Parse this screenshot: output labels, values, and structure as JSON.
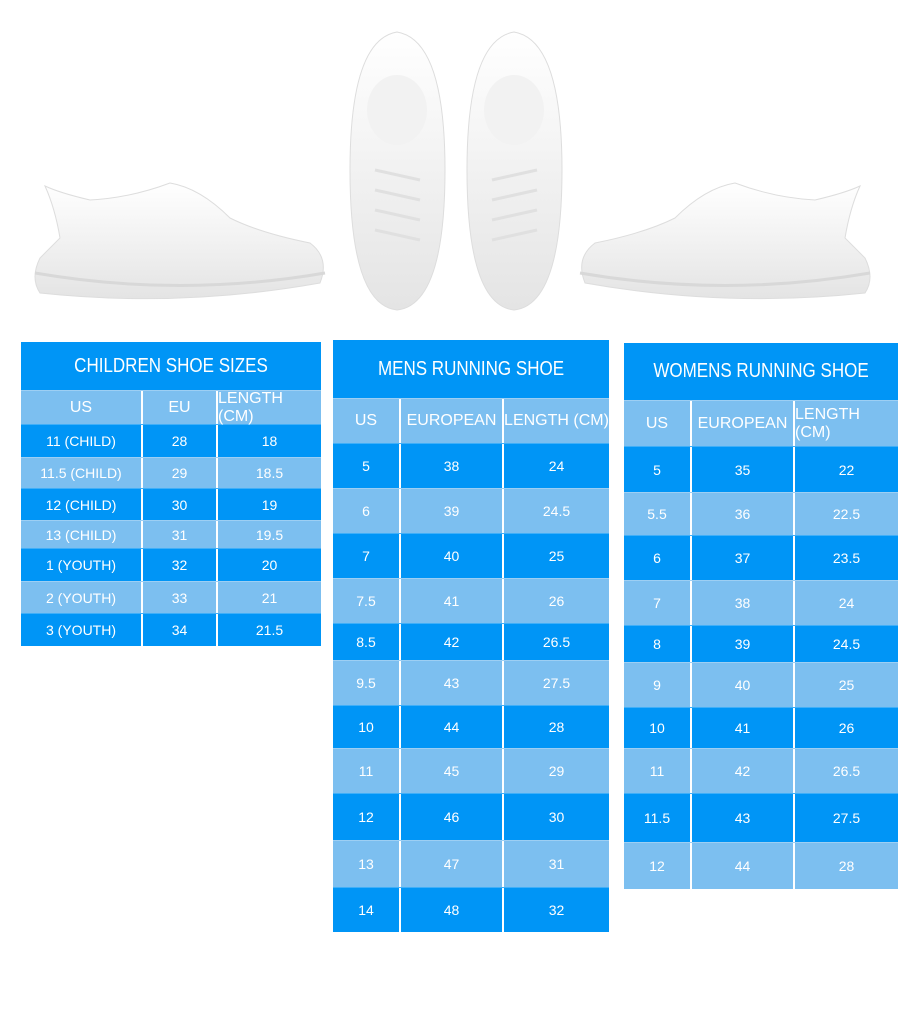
{
  "colors": {
    "dark": "#0095f6",
    "light": "#7cbff0"
  },
  "images": [
    "white-sneaker-left-side",
    "white-sneaker-top-left",
    "white-sneaker-top-right",
    "white-sneaker-right-side"
  ],
  "tables": [
    {
      "title": "CHILDREN SHOE SIZES",
      "headers": [
        "US",
        "EU",
        "LENGTH (CM)"
      ],
      "rows": [
        [
          "11 (CHILD)",
          "28",
          "18"
        ],
        [
          "11.5 (CHILD)",
          "29",
          "18.5"
        ],
        [
          "12 (CHILD)",
          "30",
          "19"
        ],
        [
          "13 (CHILD)",
          "31",
          "19.5"
        ],
        [
          "1 (YOUTH)",
          "32",
          "20"
        ],
        [
          "2 (YOUTH)",
          "33",
          "21"
        ],
        [
          "3 (YOUTH)",
          "34",
          "21.5"
        ]
      ]
    },
    {
      "title": "MENS RUNNING SHOE",
      "headers": [
        "US",
        "EUROPEAN",
        "LENGTH (CM)"
      ],
      "rows": [
        [
          "5",
          "38",
          "24"
        ],
        [
          "6",
          "39",
          "24.5"
        ],
        [
          "7",
          "40",
          "25"
        ],
        [
          "7.5",
          "41",
          "26"
        ],
        [
          "8.5",
          "42",
          "26.5"
        ],
        [
          "9.5",
          "43",
          "27.5"
        ],
        [
          "10",
          "44",
          "28"
        ],
        [
          "11",
          "45",
          "29"
        ],
        [
          "12",
          "46",
          "30"
        ],
        [
          "13",
          "47",
          "31"
        ],
        [
          "14",
          "48",
          "32"
        ]
      ]
    },
    {
      "title": "WOMENS RUNNING SHOE",
      "headers": [
        "US",
        "EUROPEAN",
        "LENGTH (CM)"
      ],
      "rows": [
        [
          "5",
          "35",
          "22"
        ],
        [
          "5.5",
          "36",
          "22.5"
        ],
        [
          "6",
          "37",
          "23.5"
        ],
        [
          "7",
          "38",
          "24"
        ],
        [
          "8",
          "39",
          "24.5"
        ],
        [
          "9",
          "40",
          "25"
        ],
        [
          "10",
          "41",
          "26"
        ],
        [
          "11",
          "42",
          "26.5"
        ],
        [
          "11.5",
          "43",
          "27.5"
        ],
        [
          "12",
          "44",
          "28"
        ]
      ]
    }
  ]
}
